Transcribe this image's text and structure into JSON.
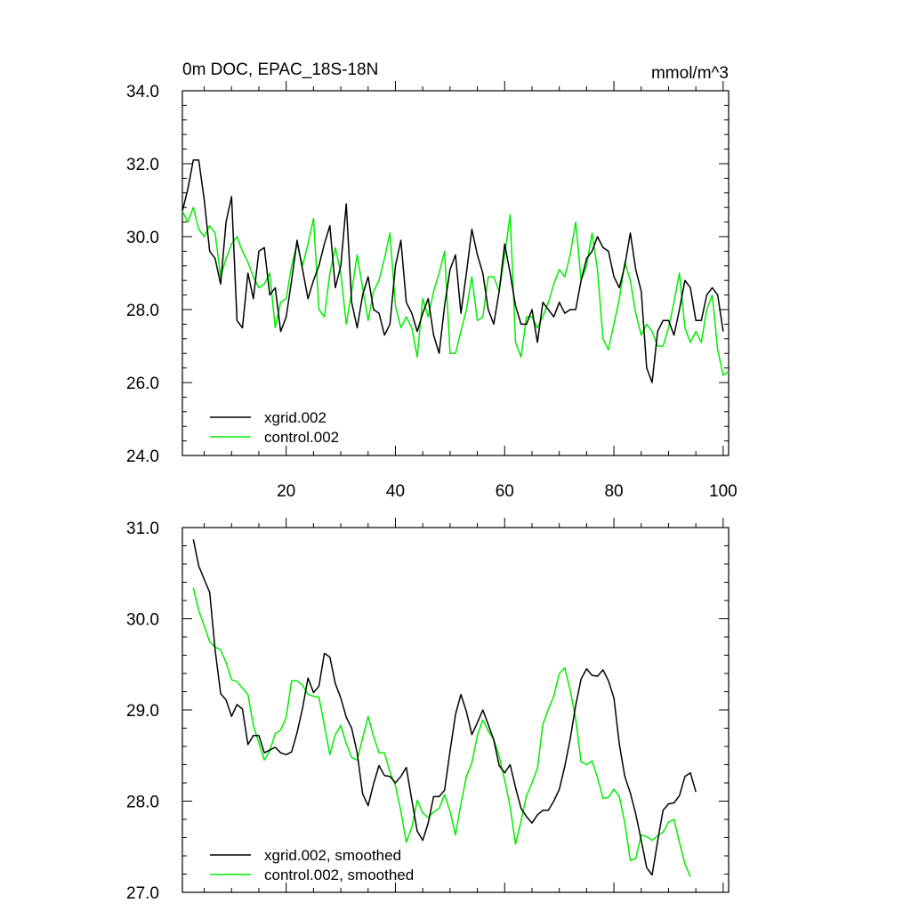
{
  "chart_data": [
    {
      "type": "line",
      "title": "0m DOC, EPAC_18S-18N",
      "units": "mmol/m^3",
      "xlim": [
        1,
        101
      ],
      "ylim": [
        24.0,
        34.0
      ],
      "x_ticks": [
        20,
        40,
        60,
        80,
        100
      ],
      "x_tick_labels": [
        "20",
        "40",
        "60",
        "80",
        "100"
      ],
      "y_ticks": [
        24.0,
        26.0,
        28.0,
        30.0,
        32.0,
        34.0
      ],
      "y_tick_labels": [
        "24.0",
        "26.0",
        "28.0",
        "30.0",
        "32.0",
        "34.0"
      ],
      "legend_placement": "bottom-left",
      "series": [
        {
          "name": "xgrid.002",
          "color": "#000000",
          "x_start": 1,
          "values": [
            30.7,
            31.3,
            32.1,
            32.1,
            31.0,
            29.6,
            29.4,
            28.7,
            30.4,
            31.1,
            27.7,
            27.5,
            29.0,
            28.3,
            29.6,
            29.7,
            28.4,
            28.6,
            27.4,
            27.8,
            28.8,
            29.9,
            29.1,
            28.3,
            28.8,
            29.2,
            29.8,
            30.3,
            28.6,
            29.2,
            30.9,
            28.2,
            27.5,
            28.4,
            28.9,
            28.0,
            27.9,
            27.3,
            27.6,
            29.2,
            29.9,
            28.2,
            27.9,
            27.4,
            27.9,
            28.3,
            27.3,
            26.8,
            28.1,
            29.1,
            29.5,
            27.9,
            29.0,
            30.2,
            29.5,
            29.0,
            28.0,
            27.6,
            28.5,
            29.8,
            29.0,
            28.1,
            27.6,
            27.6,
            28.0,
            27.1,
            28.2,
            28.0,
            27.8,
            28.2,
            27.9,
            28.0,
            28.0,
            28.8,
            29.4,
            29.6,
            30.0,
            29.7,
            29.6,
            28.9,
            28.6,
            29.2,
            30.1,
            29.1,
            28.5,
            26.4,
            26.0,
            27.4,
            27.7,
            27.7,
            27.3,
            28.0,
            28.8,
            28.6,
            27.7,
            27.7,
            28.4,
            28.6,
            28.4,
            27.4
          ]
        },
        {
          "name": "control.002",
          "color": "#00ee00",
          "x_start": 1,
          "values": [
            30.7,
            30.4,
            30.8,
            30.2,
            30.0,
            30.3,
            30.1,
            28.9,
            29.4,
            29.8,
            30.0,
            29.6,
            29.3,
            28.9,
            28.6,
            28.7,
            29.0,
            27.5,
            28.2,
            28.3,
            29.2,
            29.8,
            29.2,
            29.8,
            30.5,
            28.0,
            27.8,
            29.0,
            29.7,
            29.0,
            27.6,
            28.5,
            29.5,
            28.6,
            27.7,
            28.5,
            28.8,
            29.4,
            30.1,
            28.1,
            27.5,
            27.8,
            27.5,
            26.7,
            28.3,
            27.8,
            28.5,
            29.0,
            29.6,
            26.8,
            26.8,
            27.4,
            28.0,
            28.9,
            27.7,
            27.8,
            28.9,
            28.9,
            28.5,
            29.5,
            30.6,
            27.1,
            26.7,
            27.8,
            27.8,
            27.5,
            27.8,
            28.2,
            28.7,
            29.1,
            28.9,
            29.5,
            30.4,
            28.8,
            29.2,
            30.1,
            29.1,
            27.2,
            26.9,
            27.6,
            28.3,
            29.3,
            28.8,
            27.9,
            27.3,
            27.6,
            27.4,
            27.0,
            27.0,
            27.5,
            28.2,
            29.0,
            27.5,
            27.1,
            27.4,
            27.1,
            28.0,
            28.4,
            26.9,
            26.2,
            26.3
          ]
        }
      ]
    },
    {
      "type": "line",
      "xlim": [
        1,
        101
      ],
      "ylim": [
        27.0,
        31.0
      ],
      "y_ticks": [
        27.0,
        28.0,
        29.0,
        30.0,
        31.0
      ],
      "y_tick_labels": [
        "27.0",
        "28.0",
        "29.0",
        "30.0",
        "31.0"
      ],
      "legend_placement": "bottom-left",
      "series": [
        {
          "name": "xgrid.002, smoothed",
          "color": "#000000",
          "x_start": 3,
          "values": [
            30.87,
            30.58,
            30.43,
            30.29,
            29.66,
            29.18,
            29.11,
            28.93,
            29.06,
            29.01,
            28.62,
            28.72,
            28.72,
            28.53,
            28.56,
            28.59,
            28.53,
            28.51,
            28.54,
            28.75,
            29.02,
            29.35,
            29.19,
            29.26,
            29.62,
            29.58,
            29.29,
            29.13,
            28.92,
            28.8,
            28.53,
            28.08,
            27.95,
            28.19,
            28.39,
            28.28,
            28.27,
            28.2,
            28.27,
            28.37,
            28.01,
            27.67,
            27.57,
            27.76,
            28.05,
            28.05,
            28.12,
            28.55,
            28.95,
            29.17,
            28.98,
            28.73,
            28.86,
            29.0,
            28.84,
            28.67,
            28.39,
            28.31,
            28.4,
            28.15,
            27.92,
            27.83,
            27.76,
            27.85,
            27.9,
            27.9,
            28.0,
            28.13,
            28.38,
            28.68,
            29.05,
            29.34,
            29.45,
            29.38,
            29.37,
            29.44,
            29.32,
            29.13,
            28.62,
            28.27,
            28.09,
            27.86,
            27.57,
            27.27,
            27.19,
            27.56,
            27.9,
            27.97,
            27.98,
            28.06,
            28.27,
            28.31,
            28.1
          ]
        },
        {
          "name": "control.002, smoothed",
          "color": "#00ee00",
          "x_start": 3,
          "values": [
            30.34,
            30.09,
            29.92,
            29.75,
            29.69,
            29.66,
            29.52,
            29.33,
            29.31,
            29.24,
            29.17,
            28.83,
            28.64,
            28.45,
            28.55,
            28.74,
            28.78,
            28.92,
            29.32,
            29.32,
            29.27,
            29.17,
            29.15,
            29.14,
            28.83,
            28.51,
            28.73,
            28.83,
            28.63,
            28.48,
            28.45,
            28.69,
            28.93,
            28.71,
            28.53,
            28.53,
            28.32,
            28.17,
            27.89,
            27.55,
            27.71,
            28.01,
            27.87,
            27.82,
            27.88,
            27.92,
            28.07,
            27.89,
            27.63,
            27.97,
            28.27,
            28.42,
            28.72,
            28.89,
            28.77,
            28.68,
            28.49,
            28.23,
            27.94,
            27.53,
            27.78,
            28.06,
            28.2,
            28.36,
            28.84,
            29.01,
            29.15,
            29.4,
            29.46,
            29.22,
            28.9,
            28.43,
            28.4,
            28.44,
            28.26,
            28.03,
            28.04,
            28.13,
            28.05,
            27.76,
            27.35,
            27.37,
            27.63,
            27.61,
            27.57,
            27.62,
            27.66,
            27.77,
            27.8,
            27.55,
            27.31,
            27.17
          ]
        }
      ]
    }
  ]
}
